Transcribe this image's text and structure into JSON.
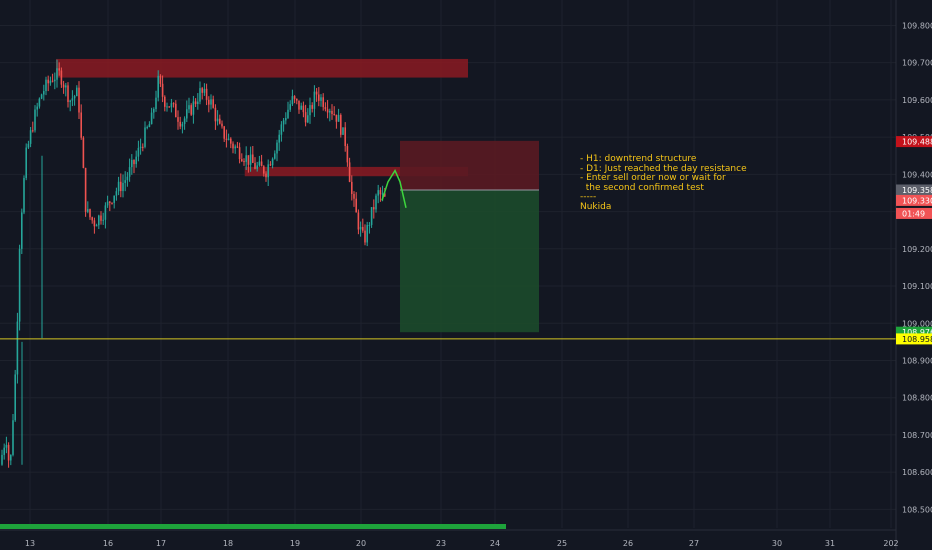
{
  "chart_data": {
    "type": "candlestick",
    "symbol_timeframe": "H1",
    "x_tick_labels": [
      "13",
      "16",
      "17",
      "18",
      "19",
      "20",
      "23",
      "24",
      "25",
      "26",
      "27",
      "30",
      "31",
      "202"
    ],
    "y_ticks": [
      "109.800",
      "109.700",
      "109.600",
      "109.500",
      "109.400",
      "109.300",
      "109.200",
      "109.100",
      "109.000",
      "108.900",
      "108.800",
      "108.700",
      "108.600",
      "108.500"
    ],
    "ylim": [
      108.45,
      109.82
    ],
    "price_labels": [
      {
        "text": "109.488",
        "value": 109.488,
        "color": "#c3121b",
        "text_color": "#ffffff"
      },
      {
        "text": "109.358",
        "value": 109.358,
        "color": "#5d606b",
        "text_color": "#ffffff"
      },
      {
        "text": "109.330",
        "value": 109.33,
        "color": "#f15355",
        "text_color": "#ffffff"
      },
      {
        "text": "01:49",
        "value": 109.295,
        "color": "#f15355",
        "text_color": "#ffffff"
      },
      {
        "text": "108.976",
        "value": 108.976,
        "color": "#1ea33b",
        "text_color": "#ffffff"
      },
      {
        "text": "108.958",
        "value": 108.958,
        "color": "#ffff00",
        "text_color": "#131722"
      }
    ],
    "horizontal_line": {
      "value": 108.958,
      "color": "#d4c622"
    },
    "resistance_zones": [
      {
        "x_from": "14 00:00",
        "x_to": "23 12:00",
        "y_from": 109.66,
        "y_to": 109.71
      },
      {
        "x_from": "18 06:00",
        "x_to": "23 12:00",
        "y_from": 109.395,
        "y_to": 109.42
      }
    ],
    "short_position": {
      "entry": 109.358,
      "stop": 109.49,
      "target": 108.976
    },
    "colors": {
      "up": "#26a69a",
      "down": "#ef5350",
      "zone": "#8b1a22",
      "stop_zone": "#5a1a22",
      "target_zone": "#1c4a2b",
      "projection": "#3dd63d"
    },
    "projection_path": [
      109.33,
      109.38,
      109.41,
      109.38,
      109.31
    ]
  },
  "annotation": {
    "lines": [
      "- H1: downtrend structure",
      "- D1: Just reached the day resistance",
      "- Enter sell order now or wait for",
      "  the second confirmed test",
      "-----",
      "Nukida"
    ]
  }
}
